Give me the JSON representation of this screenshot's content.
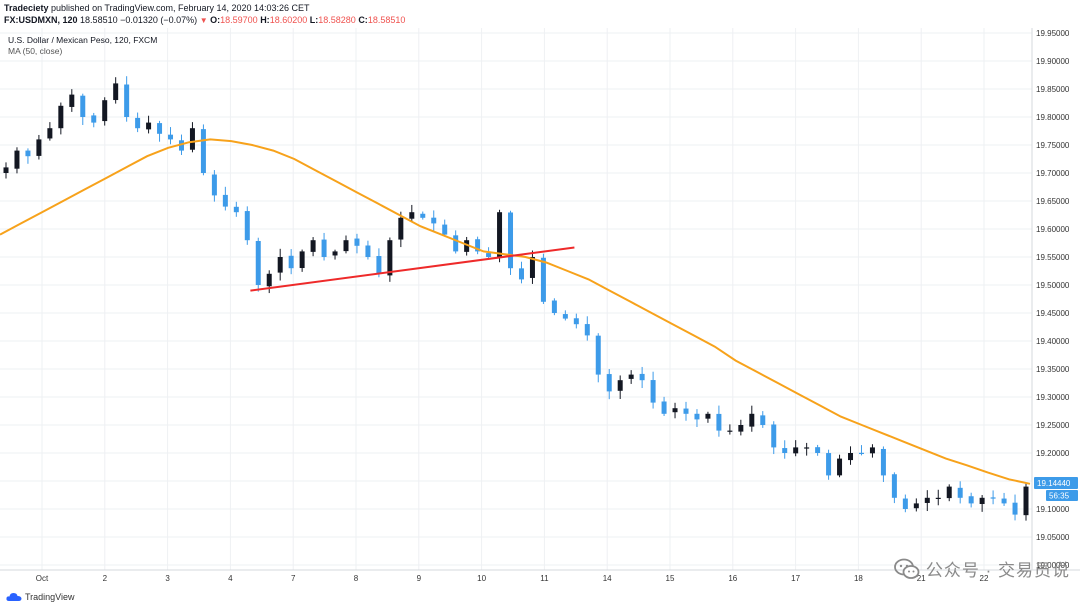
{
  "header": {
    "publisher": "Tradeciety",
    "published_text": " published on TradingView.com, February 14, 2020 14:03:26 CET",
    "symbol": "FX:USDMXN, 120",
    "last": "18.58510",
    "change": "−0.01320 (−0.07%)",
    "arrow": "▼",
    "o_label": "O:",
    "o_value": "18.59700",
    "h_label": "H:",
    "h_value": "18.60200",
    "l_label": "L:",
    "l_value": "18.58280",
    "c_label": "C:",
    "c_value": "18.58510"
  },
  "legend": {
    "instrument": "U.S. Dollar / Mexican Peso, 120, FXCM",
    "indicator": "MA (50, close)"
  },
  "footer": {
    "brand": "TradingView"
  },
  "watermark": {
    "text": "公众号 · 交易员说"
  },
  "colors": {
    "up": "#131722",
    "down": "#3d9be9",
    "ma": "#f7a21b",
    "trendline": "#ee2a2a",
    "price_tag": "#3d9be9",
    "grid": "#eef0f3"
  },
  "chart_data": {
    "type": "candlestick",
    "symbol": "USDMXN",
    "interval": "120",
    "ylim": [
      19.0,
      19.95
    ],
    "y_ticks": [
      "19.95000",
      "19.90000",
      "19.85000",
      "19.80000",
      "19.75000",
      "19.70000",
      "19.65000",
      "19.60000",
      "19.55000",
      "19.50000",
      "19.45000",
      "19.40000",
      "19.35000",
      "19.30000",
      "19.25000",
      "19.20000",
      "19.15000",
      "19.10000",
      "19.05000",
      "19.00000"
    ],
    "x_labels": [
      "Oct",
      "2",
      "3",
      "4",
      "7",
      "8",
      "9",
      "10",
      "11",
      "14",
      "15",
      "16",
      "17",
      "18",
      "21",
      "22"
    ],
    "price_label": "19.14440",
    "countdown_label": "56:35",
    "current_price": 19.1444,
    "close_path": [
      19.71,
      19.74,
      19.73,
      19.76,
      19.78,
      19.82,
      19.84,
      19.8,
      19.79,
      19.83,
      19.86,
      19.8,
      19.78,
      19.79,
      19.77,
      19.76,
      19.74,
      19.78,
      19.7,
      19.66,
      19.64,
      19.63,
      19.58,
      19.5,
      19.52,
      19.55,
      19.53,
      19.56,
      19.58,
      19.55,
      19.56,
      19.58,
      19.57,
      19.55,
      19.52,
      19.58,
      19.62,
      19.63,
      19.62,
      19.61,
      19.59,
      19.56,
      19.58,
      19.56,
      19.55,
      19.63,
      19.53,
      19.51,
      19.55,
      19.47,
      19.45,
      19.44,
      19.43,
      19.41,
      19.34,
      19.31,
      19.33,
      19.34,
      19.33,
      19.29,
      19.27,
      19.28,
      19.27,
      19.26,
      19.27,
      19.24,
      19.24,
      19.25,
      19.27,
      19.25,
      19.21,
      19.2,
      19.21,
      19.21,
      19.2,
      19.16,
      19.19,
      19.2,
      19.2,
      19.21,
      19.16,
      19.12,
      19.1,
      19.11,
      19.12,
      19.12,
      19.14,
      19.12,
      19.11,
      19.12,
      19.12,
      19.11,
      19.09,
      19.14
    ],
    "ma_path": [
      19.59,
      19.61,
      19.63,
      19.65,
      19.67,
      19.69,
      19.71,
      19.73,
      19.745,
      19.755,
      19.76,
      19.757,
      19.75,
      19.74,
      19.725,
      19.705,
      19.685,
      19.665,
      19.645,
      19.625,
      19.605,
      19.59,
      19.575,
      19.56,
      19.555,
      19.55,
      19.54,
      19.525,
      19.51,
      19.49,
      19.47,
      19.45,
      19.43,
      19.41,
      19.39,
      19.365,
      19.345,
      19.325,
      19.305,
      19.285,
      19.265,
      19.25,
      19.235,
      19.22,
      19.205,
      19.19,
      19.178,
      19.165,
      19.153,
      19.145
    ],
    "trendline": {
      "from": {
        "x_label": "4",
        "price": 19.49
      },
      "to": {
        "x_label": "11",
        "price": 19.567
      }
    }
  }
}
